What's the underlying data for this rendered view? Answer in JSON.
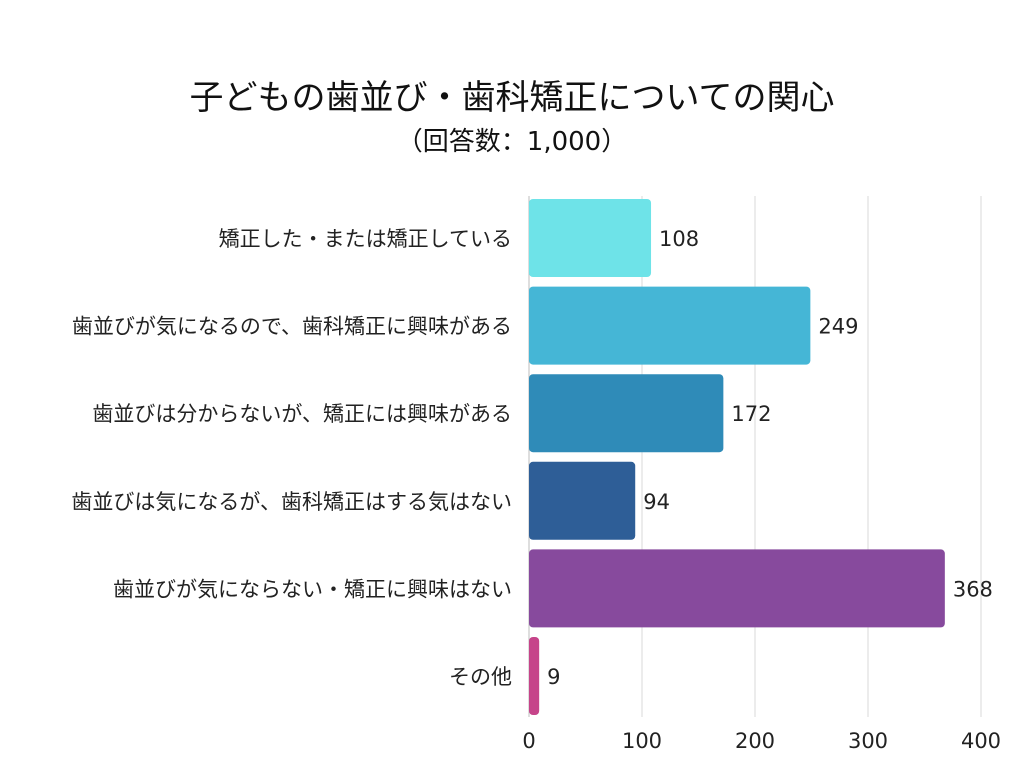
{
  "chart_data": {
    "type": "bar",
    "orientation": "horizontal",
    "title": "子どもの歯並び・歯科矯正についての関心",
    "subtitle": "（回答数：1,000）",
    "categories": [
      "矯正した・または矯正している",
      "歯並びが気になるので、歯科矯正に興味がある",
      "歯並びは分からないが、矯正には興味がある",
      "歯並びは気になるが、歯科矯正はする気はない",
      "歯並びが気にならない・矯正に興味はない",
      "その他"
    ],
    "values": [
      108,
      249,
      172,
      94,
      368,
      9
    ],
    "value_labels": [
      "108",
      "249",
      "172",
      "94",
      "368",
      "9"
    ],
    "colors": [
      "#6ee3e8",
      "#45b6d6",
      "#2f8bb8",
      "#2e5e97",
      "#874a9d",
      "#c6448a"
    ],
    "xlim": [
      0,
      400
    ],
    "xticks": [
      0,
      100,
      200,
      300,
      400
    ],
    "xtick_labels": [
      "0",
      "100",
      "200",
      "300",
      "400"
    ],
    "grid": "vertical",
    "grid_color": "#d9d9d9",
    "legend": "none"
  }
}
